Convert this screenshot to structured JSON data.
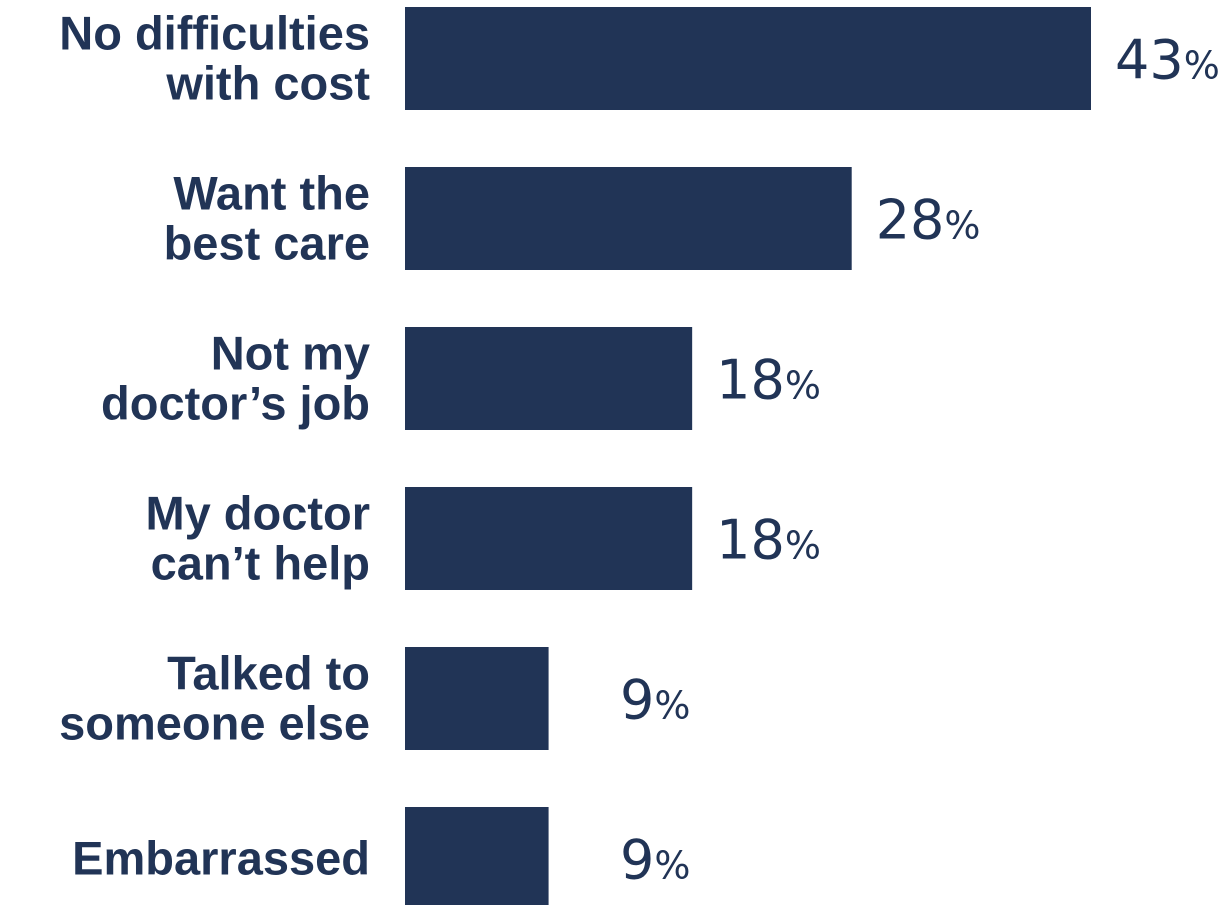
{
  "colors": {
    "bar": "#213456",
    "text": "#213456",
    "background": "#ffffff"
  },
  "chart_data": {
    "type": "bar",
    "orientation": "horizontal",
    "categories": [
      [
        "No difficulties",
        "with cost"
      ],
      [
        "Want the",
        "best care"
      ],
      [
        "Not my",
        "doctor’s job"
      ],
      [
        "My doctor",
        "can’t help"
      ],
      [
        "Talked to",
        "someone else"
      ],
      [
        "Embarrassed"
      ]
    ],
    "values": [
      43,
      28,
      18,
      18,
      9,
      9
    ],
    "value_suffix": "%",
    "xlim": [
      0,
      43
    ],
    "grid": false,
    "legend": "none",
    "title": "",
    "xlabel": "",
    "ylabel": ""
  }
}
